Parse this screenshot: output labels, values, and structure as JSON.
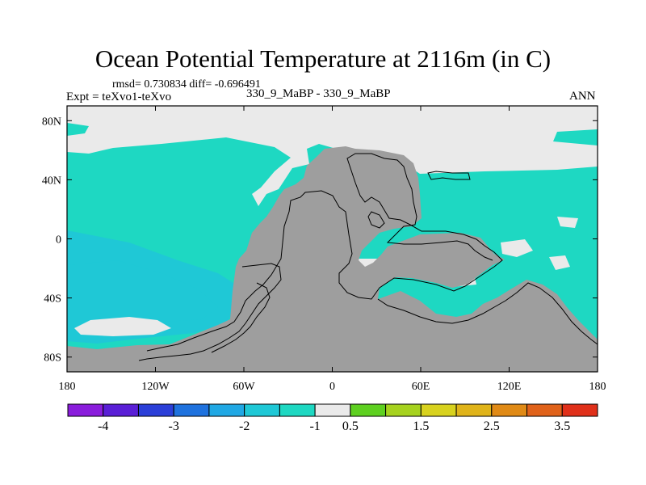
{
  "header": {
    "title": "Ocean Potential Temperature at 2116m (in C)",
    "stats": "rmsd= 0.730834 diff= -0.696491",
    "subtitle": "330_9_MaBP - 330_9_MaBP",
    "left_string": "Expt = teXvo1-teXvo",
    "right_string": "ANN"
  },
  "axes": {
    "x_ticks": [
      {
        "value": -180,
        "label": "180"
      },
      {
        "value": -120,
        "label": "120W"
      },
      {
        "value": -60,
        "label": "60W"
      },
      {
        "value": 0,
        "label": "0"
      },
      {
        "value": 60,
        "label": "60E"
      },
      {
        "value": 120,
        "label": "120E"
      },
      {
        "value": 180,
        "label": "180"
      }
    ],
    "y_ticks": [
      {
        "value": 80,
        "label": "80N"
      },
      {
        "value": 40,
        "label": "40N"
      },
      {
        "value": 0,
        "label": "0"
      },
      {
        "value": -40,
        "label": "40S"
      },
      {
        "value": -80,
        "label": "80S"
      }
    ],
    "lon_range": [
      -180,
      180
    ],
    "lat_range": [
      -90,
      90
    ]
  },
  "colorbar": {
    "colors": [
      "#8a1ddc",
      "#5a1fd6",
      "#2b3fd8",
      "#1f72de",
      "#20a8e4",
      "#1fc8d6",
      "#1ed8c2",
      "#eaeaea",
      "#5ed020",
      "#a6d21e",
      "#d8d21e",
      "#e0b41a",
      "#e08a16",
      "#e0621a",
      "#e0301a"
    ],
    "labels": [
      {
        "after_box": 1,
        "text": "-4"
      },
      {
        "after_box": 3,
        "text": "-3"
      },
      {
        "after_box": 5,
        "text": "-2"
      },
      {
        "after_box": 7,
        "text": "-1"
      },
      {
        "after_box": 8,
        "text": "0.5"
      },
      {
        "after_box": 10,
        "text": "1.5"
      },
      {
        "after_box": 12,
        "text": "2.5"
      },
      {
        "after_box": 14,
        "text": "3.5"
      }
    ]
  },
  "map_colors": {
    "land": "#9e9e9e",
    "near_zero": "#eaeaea",
    "cooler_1": "#1ed8c2",
    "cooler_2": "#1fc8d6",
    "coast_line": "#000000"
  }
}
